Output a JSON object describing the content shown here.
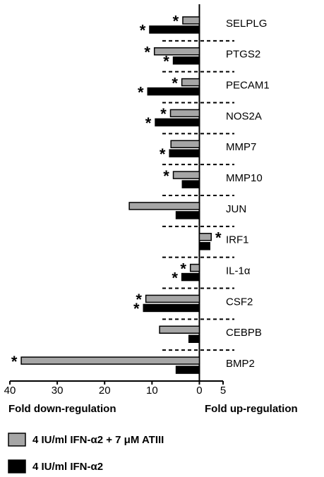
{
  "chart_data": {
    "type": "hbar",
    "categories": [
      "SELPLG",
      "PTGS2",
      "PECAM1",
      "NOS2A",
      "MMP7",
      "MMP10",
      "JUN",
      "IRF1",
      "IL-1α",
      "CSF2",
      "CEBPB",
      "BMP2"
    ],
    "series": [
      {
        "name": "4 IU/ml IFN-α2 + 7 μM ATIII",
        "color": "#a6a6a6",
        "values": [
          -3.5,
          -9.5,
          -3.7,
          -6.1,
          -6,
          -5.5,
          -14.8,
          2.5,
          -1.9,
          -11.3,
          -8.4,
          -37.6
        ],
        "annotations": [
          "*",
          "*",
          "*",
          "*",
          null,
          "*",
          null,
          "*",
          "*",
          "*",
          null,
          "*"
        ]
      },
      {
        "name": "4 IU/ml IFN-α2",
        "color": "#000000",
        "values": [
          -10.5,
          -5.5,
          -10.9,
          -9.3,
          -6.3,
          -3.6,
          -4.9,
          2.2,
          -3.7,
          -11.8,
          -2.2,
          -4.9
        ],
        "annotations": [
          "*",
          "*",
          "*",
          "*",
          "*",
          null,
          null,
          null,
          "*",
          "*",
          null,
          null
        ]
      }
    ],
    "xlabel_left": "Fold down-regulation",
    "xlabel_right": "Fold up-regulation",
    "xlim": [
      -40,
      5
    ],
    "xticks": [
      {
        "value": -40,
        "label": "40"
      },
      {
        "value": -30,
        "label": "30"
      },
      {
        "value": -20,
        "label": "20"
      },
      {
        "value": -10,
        "label": "10"
      },
      0,
      5
    ]
  }
}
